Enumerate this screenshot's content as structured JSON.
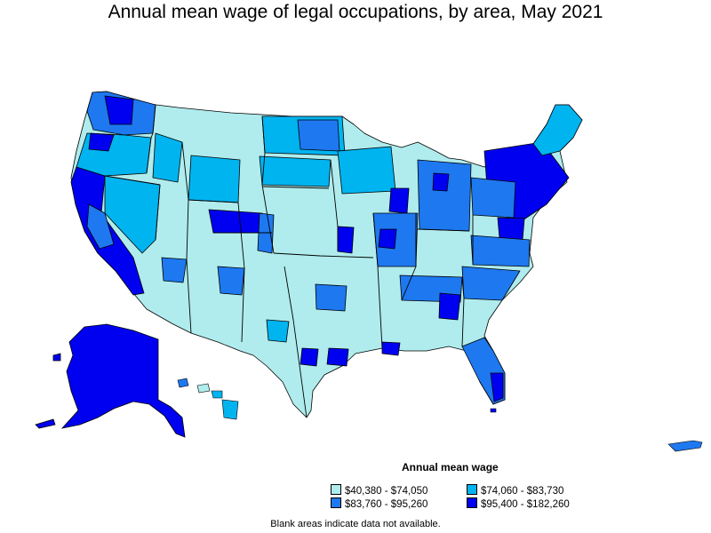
{
  "title": "Annual mean wage of legal occupations, by area, May 2021",
  "legend": {
    "title": "Annual mean wage",
    "items": [
      {
        "label": "$40,380 - $74,050",
        "color": "#b0eced"
      },
      {
        "label": "$74,060 - $83,730",
        "color": "#00b4f0"
      },
      {
        "label": "$83,760 - $95,260",
        "color": "#1e78f0"
      },
      {
        "label": "$95,400 - $182,260",
        "color": "#0000f0"
      }
    ]
  },
  "note": "Blank areas indicate data not available."
}
